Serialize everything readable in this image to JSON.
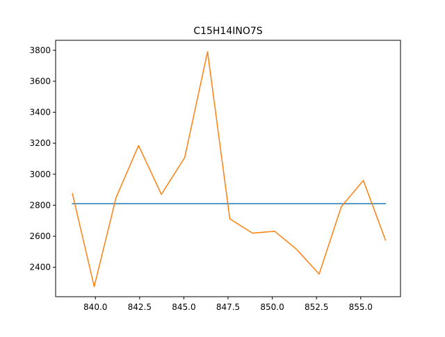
{
  "chart_data": {
    "type": "line",
    "title": "C15H14INO7S",
    "xlabel": "",
    "ylabel": "",
    "xlim": [
      837.75,
      857.25
    ],
    "ylim": [
      2210,
      3864
    ],
    "grid": false,
    "x_ticks": [
      840.0,
      842.5,
      845.0,
      847.5,
      850.0,
      852.5,
      855.0
    ],
    "x_tick_labels": [
      "840.0",
      "842.5",
      "845.0",
      "847.5",
      "850.0",
      "852.5",
      "855.0"
    ],
    "y_ticks": [
      2400,
      2600,
      2800,
      3000,
      3200,
      3400,
      3600,
      3800
    ],
    "y_tick_labels": [
      "2400",
      "2600",
      "2800",
      "3000",
      "3200",
      "3400",
      "3600",
      "3800"
    ],
    "series": [
      {
        "color": "#1f77b4",
        "x": [
          838.7,
          856.4
        ],
        "y": [
          2810,
          2810
        ]
      },
      {
        "color": "#ff7f0e",
        "x": [
          838.7,
          839.93,
          841.17,
          842.44,
          843.73,
          845.05,
          846.34,
          847.6,
          848.88,
          850.13,
          851.38,
          852.65,
          853.9,
          855.15,
          856.4
        ],
        "y": [
          2875,
          2275,
          2850,
          3185,
          2870,
          3108,
          3790,
          2712,
          2620,
          2632,
          2515,
          2356,
          2790,
          2960,
          2575
        ]
      }
    ]
  }
}
